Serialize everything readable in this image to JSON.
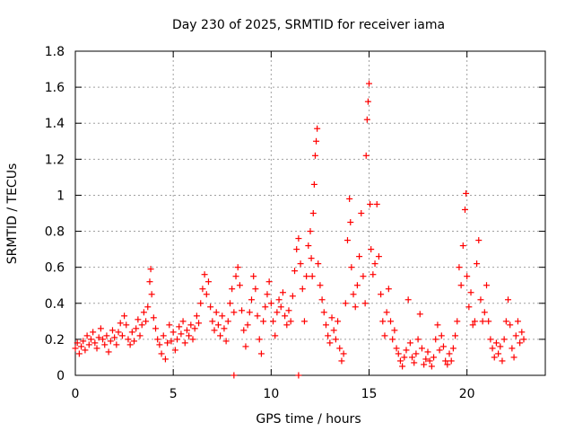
{
  "chart_data": {
    "type": "scatter",
    "title": "Day 230 of 2025, SRMTID for receiver iama",
    "xlabel": "GPS time / hours",
    "ylabel": "SRMTID / TECUs",
    "xlim": [
      0,
      24
    ],
    "ylim": [
      0,
      1.8
    ],
    "xticks": [
      "0",
      "5",
      "10",
      "15",
      "20"
    ],
    "yticks": [
      "0",
      "0.2",
      "0.4",
      "0.6",
      "0.8",
      "1",
      "1.2",
      "1.4",
      "1.6",
      "1.8"
    ],
    "grid": true,
    "marker": "plus",
    "color": "#ff0000",
    "series": [
      {
        "name": "SRMTID",
        "points": [
          [
            0.0,
            0.15
          ],
          [
            0.1,
            0.18
          ],
          [
            0.2,
            0.12
          ],
          [
            0.3,
            0.16
          ],
          [
            0.4,
            0.19
          ],
          [
            0.5,
            0.14
          ],
          [
            0.6,
            0.22
          ],
          [
            0.7,
            0.17
          ],
          [
            0.8,
            0.2
          ],
          [
            0.9,
            0.24
          ],
          [
            1.0,
            0.18
          ],
          [
            1.1,
            0.15
          ],
          [
            1.2,
            0.21
          ],
          [
            1.3,
            0.26
          ],
          [
            1.4,
            0.2
          ],
          [
            1.5,
            0.17
          ],
          [
            1.6,
            0.22
          ],
          [
            1.7,
            0.13
          ],
          [
            1.8,
            0.19
          ],
          [
            1.9,
            0.25
          ],
          [
            2.0,
            0.21
          ],
          [
            2.1,
            0.17
          ],
          [
            2.2,
            0.24
          ],
          [
            2.3,
            0.29
          ],
          [
            2.4,
            0.22
          ],
          [
            2.5,
            0.33
          ],
          [
            2.6,
            0.28
          ],
          [
            2.7,
            0.2
          ],
          [
            2.8,
            0.17
          ],
          [
            2.9,
            0.24
          ],
          [
            3.0,
            0.19
          ],
          [
            3.1,
            0.26
          ],
          [
            3.2,
            0.31
          ],
          [
            3.3,
            0.22
          ],
          [
            3.4,
            0.28
          ],
          [
            3.5,
            0.35
          ],
          [
            3.6,
            0.3
          ],
          [
            3.7,
            0.38
          ],
          [
            3.8,
            0.52
          ],
          [
            3.85,
            0.59
          ],
          [
            3.9,
            0.45
          ],
          [
            4.0,
            0.32
          ],
          [
            4.1,
            0.26
          ],
          [
            4.2,
            0.2
          ],
          [
            4.3,
            0.17
          ],
          [
            4.4,
            0.12
          ],
          [
            4.5,
            0.22
          ],
          [
            4.6,
            0.09
          ],
          [
            4.7,
            0.18
          ],
          [
            4.8,
            0.28
          ],
          [
            4.9,
            0.19
          ],
          [
            5.0,
            0.24
          ],
          [
            5.1,
            0.14
          ],
          [
            5.2,
            0.2
          ],
          [
            5.3,
            0.27
          ],
          [
            5.4,
            0.23
          ],
          [
            5.5,
            0.3
          ],
          [
            5.6,
            0.18
          ],
          [
            5.7,
            0.25
          ],
          [
            5.8,
            0.22
          ],
          [
            5.9,
            0.28
          ],
          [
            6.0,
            0.2
          ],
          [
            6.1,
            0.26
          ],
          [
            6.2,
            0.33
          ],
          [
            6.3,
            0.29
          ],
          [
            6.4,
            0.4
          ],
          [
            6.5,
            0.48
          ],
          [
            6.6,
            0.56
          ],
          [
            6.7,
            0.45
          ],
          [
            6.8,
            0.52
          ],
          [
            6.9,
            0.38
          ],
          [
            7.0,
            0.3
          ],
          [
            7.1,
            0.25
          ],
          [
            7.2,
            0.35
          ],
          [
            7.3,
            0.28
          ],
          [
            7.4,
            0.22
          ],
          [
            7.5,
            0.33
          ],
          [
            7.6,
            0.26
          ],
          [
            7.7,
            0.19
          ],
          [
            7.8,
            0.3
          ],
          [
            7.9,
            0.4
          ],
          [
            8.0,
            0.48
          ],
          [
            8.1,
            0.35
          ],
          [
            8.2,
            0.55
          ],
          [
            8.3,
            0.6
          ],
          [
            8.4,
            0.5
          ],
          [
            8.5,
            0.36
          ],
          [
            8.6,
            0.25
          ],
          [
            8.7,
            0.16
          ],
          [
            8.8,
            0.28
          ],
          [
            8.9,
            0.35
          ],
          [
            9.0,
            0.42
          ],
          [
            9.1,
            0.55
          ],
          [
            9.2,
            0.48
          ],
          [
            9.3,
            0.33
          ],
          [
            9.4,
            0.2
          ],
          [
            9.5,
            0.12
          ],
          [
            9.6,
            0.3
          ],
          [
            9.7,
            0.38
          ],
          [
            9.8,
            0.45
          ],
          [
            9.9,
            0.52
          ],
          [
            10.0,
            0.4
          ],
          [
            10.1,
            0.3
          ],
          [
            10.2,
            0.22
          ],
          [
            10.3,
            0.35
          ],
          [
            10.4,
            0.42
          ],
          [
            10.5,
            0.38
          ],
          [
            10.6,
            0.46
          ],
          [
            10.7,
            0.33
          ],
          [
            10.8,
            0.28
          ],
          [
            10.9,
            0.36
          ],
          [
            11.0,
            0.3
          ],
          [
            11.1,
            0.44
          ],
          [
            11.2,
            0.58
          ],
          [
            11.3,
            0.7
          ],
          [
            11.4,
            0.76
          ],
          [
            11.5,
            0.62
          ],
          [
            11.6,
            0.48
          ],
          [
            11.7,
            0.3
          ],
          [
            11.8,
            0.55
          ],
          [
            11.9,
            0.72
          ],
          [
            12.0,
            0.8
          ],
          [
            12.05,
            0.65
          ],
          [
            12.1,
            0.55
          ],
          [
            12.15,
            0.9
          ],
          [
            12.2,
            1.06
          ],
          [
            12.25,
            1.22
          ],
          [
            12.3,
            1.3
          ],
          [
            12.35,
            1.37
          ],
          [
            12.4,
            0.62
          ],
          [
            12.5,
            0.5
          ],
          [
            12.6,
            0.42
          ],
          [
            12.7,
            0.35
          ],
          [
            12.8,
            0.28
          ],
          [
            12.9,
            0.22
          ],
          [
            13.0,
            0.18
          ],
          [
            13.1,
            0.32
          ],
          [
            13.2,
            0.25
          ],
          [
            13.3,
            0.2
          ],
          [
            13.4,
            0.3
          ],
          [
            13.5,
            0.15
          ],
          [
            13.6,
            0.08
          ],
          [
            13.7,
            0.12
          ],
          [
            13.8,
            0.4
          ],
          [
            13.9,
            0.75
          ],
          [
            14.0,
            0.98
          ],
          [
            14.05,
            0.85
          ],
          [
            14.1,
            0.6
          ],
          [
            14.2,
            0.45
          ],
          [
            14.3,
            0.38
          ],
          [
            14.4,
            0.5
          ],
          [
            14.5,
            0.66
          ],
          [
            14.6,
            0.9
          ],
          [
            14.7,
            0.55
          ],
          [
            14.8,
            0.4
          ],
          [
            14.85,
            1.22
          ],
          [
            14.9,
            1.42
          ],
          [
            14.95,
            1.52
          ],
          [
            15.0,
            1.62
          ],
          [
            15.05,
            0.95
          ],
          [
            15.1,
            0.7
          ],
          [
            15.2,
            0.56
          ],
          [
            15.3,
            0.62
          ],
          [
            15.4,
            0.95
          ],
          [
            15.5,
            0.66
          ],
          [
            15.6,
            0.45
          ],
          [
            15.7,
            0.3
          ],
          [
            15.8,
            0.22
          ],
          [
            15.9,
            0.35
          ],
          [
            16.0,
            0.48
          ],
          [
            16.1,
            0.3
          ],
          [
            16.2,
            0.2
          ],
          [
            16.3,
            0.25
          ],
          [
            16.4,
            0.15
          ],
          [
            16.5,
            0.12
          ],
          [
            16.6,
            0.08
          ],
          [
            16.7,
            0.05
          ],
          [
            16.8,
            0.1
          ],
          [
            16.9,
            0.14
          ],
          [
            17.0,
            0.42
          ],
          [
            17.1,
            0.18
          ],
          [
            17.2,
            0.1
          ],
          [
            17.3,
            0.07
          ],
          [
            17.4,
            0.12
          ],
          [
            17.5,
            0.2
          ],
          [
            17.6,
            0.34
          ],
          [
            17.7,
            0.15
          ],
          [
            17.8,
            0.06
          ],
          [
            17.9,
            0.09
          ],
          [
            18.0,
            0.13
          ],
          [
            18.1,
            0.08
          ],
          [
            18.2,
            0.05
          ],
          [
            18.3,
            0.1
          ],
          [
            18.4,
            0.2
          ],
          [
            18.5,
            0.28
          ],
          [
            18.6,
            0.14
          ],
          [
            18.7,
            0.22
          ],
          [
            18.8,
            0.16
          ],
          [
            18.9,
            0.08
          ],
          [
            19.0,
            0.06
          ],
          [
            19.1,
            0.12
          ],
          [
            19.2,
            0.08
          ],
          [
            19.3,
            0.15
          ],
          [
            19.4,
            0.22
          ],
          [
            19.5,
            0.3
          ],
          [
            19.6,
            0.6
          ],
          [
            19.7,
            0.5
          ],
          [
            19.8,
            0.72
          ],
          [
            19.9,
            0.92
          ],
          [
            19.95,
            1.01
          ],
          [
            20.0,
            0.55
          ],
          [
            20.1,
            0.38
          ],
          [
            20.2,
            0.46
          ],
          [
            20.3,
            0.28
          ],
          [
            20.4,
            0.3
          ],
          [
            20.5,
            0.62
          ],
          [
            20.6,
            0.75
          ],
          [
            20.7,
            0.42
          ],
          [
            20.8,
            0.3
          ],
          [
            20.9,
            0.35
          ],
          [
            21.0,
            0.5
          ],
          [
            21.1,
            0.3
          ],
          [
            21.2,
            0.2
          ],
          [
            21.3,
            0.15
          ],
          [
            21.4,
            0.1
          ],
          [
            21.5,
            0.18
          ],
          [
            21.6,
            0.12
          ],
          [
            21.7,
            0.16
          ],
          [
            21.8,
            0.08
          ],
          [
            21.9,
            0.2
          ],
          [
            22.0,
            0.3
          ],
          [
            22.1,
            0.42
          ],
          [
            22.2,
            0.28
          ],
          [
            22.3,
            0.15
          ],
          [
            22.4,
            0.1
          ],
          [
            22.5,
            0.22
          ],
          [
            22.6,
            0.3
          ],
          [
            22.7,
            0.18
          ],
          [
            22.8,
            0.24
          ],
          [
            22.9,
            0.2
          ],
          [
            8.1,
            0.0
          ],
          [
            11.4,
            0.0
          ]
        ]
      }
    ]
  }
}
